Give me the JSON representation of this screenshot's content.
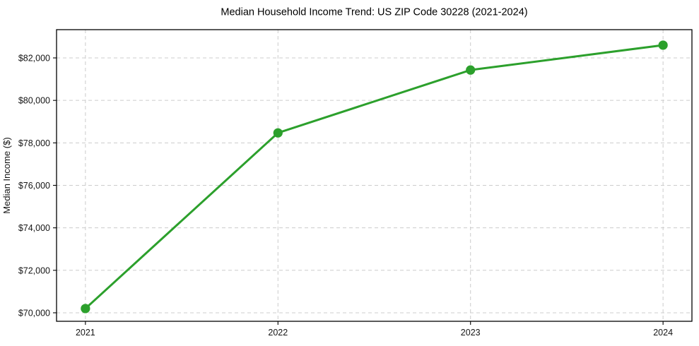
{
  "chart_data": {
    "type": "line",
    "title": "Median Household Income Trend: US ZIP Code 30228 (2021-2024)",
    "xlabel": "",
    "ylabel": "Median Income ($)",
    "x": [
      2021,
      2022,
      2023,
      2024
    ],
    "series": [
      {
        "name": "Median Household Income",
        "values": [
          70200,
          78470,
          81430,
          82600
        ],
        "color": "#2ca02c",
        "marker": "circle",
        "marker_radius": 6.6,
        "line_width": 3
      }
    ],
    "xticks": [
      {
        "v": 2021,
        "label": "2021"
      },
      {
        "v": 2022,
        "label": "2022"
      },
      {
        "v": 2023,
        "label": "2023"
      },
      {
        "v": 2024,
        "label": "2024"
      }
    ],
    "yticks": [
      {
        "v": 70000,
        "label": "$70,000"
      },
      {
        "v": 72000,
        "label": "$72,000"
      },
      {
        "v": 74000,
        "label": "$74,000"
      },
      {
        "v": 76000,
        "label": "$76,000"
      },
      {
        "v": 78000,
        "label": "$78,000"
      },
      {
        "v": 80000,
        "label": "$80,000"
      },
      {
        "v": 82000,
        "label": "$82,000"
      }
    ],
    "xlim": [
      2020.85,
      2024.15
    ],
    "ylim": [
      69600,
      83330
    ],
    "grid": true,
    "grid_style": "dashed",
    "grid_color": "#cccccc",
    "spine_color": "#000000",
    "background_color": "#ffffff",
    "legend": false
  }
}
